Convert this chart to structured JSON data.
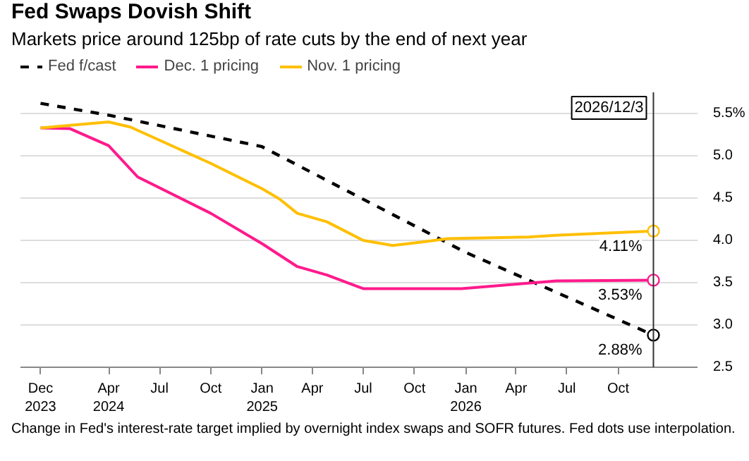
{
  "chart_data": {
    "type": "line",
    "title": "Fed Swaps Dovish Shift",
    "subtitle": "Markets price around 125bp of rate cuts by the end of next year",
    "series": [
      {
        "name": "Fed f/cast",
        "color": "#000000",
        "line_style": "dashed",
        "x": [
          "2023-12-01",
          "2024-04-01",
          "2024-12-31",
          "2025-12-31",
          "2026-12-03"
        ],
        "values": [
          5.62,
          5.48,
          5.11,
          3.86,
          2.88
        ],
        "value_labels": [
          null,
          null,
          null,
          null,
          "2.88%"
        ]
      },
      {
        "name": "Dec. 1 pricing",
        "color": "#ff1a8c",
        "x": [
          "2023-12-01",
          "2024-01-23",
          "2024-04-01",
          "2024-05-23",
          "2024-10-01",
          "2025-01-01",
          "2025-03-05",
          "2025-04-27",
          "2025-07-01",
          "2025-12-24",
          "2026-06-12",
          "2026-12-03"
        ],
        "values": [
          5.33,
          5.32,
          5.12,
          4.75,
          4.32,
          3.96,
          3.69,
          3.59,
          3.43,
          3.43,
          3.52,
          3.53
        ],
        "value_labels": [
          null,
          null,
          null,
          null,
          null,
          null,
          null,
          null,
          null,
          null,
          null,
          "3.53%"
        ]
      },
      {
        "name": "Nov. 1 pricing",
        "color": "#ffbf00",
        "x": [
          "2023-12-01",
          "2024-04-01",
          "2024-05-10",
          "2024-10-01",
          "2025-01-01",
          "2025-02-01",
          "2025-03-05",
          "2025-04-27",
          "2025-07-01",
          "2025-08-23",
          "2025-10-13",
          "2025-11-30",
          "2026-04-24",
          "2026-06-12",
          "2026-12-03"
        ],
        "values": [
          5.33,
          5.4,
          5.34,
          4.91,
          4.61,
          4.49,
          4.32,
          4.22,
          4.0,
          3.94,
          3.98,
          4.02,
          4.04,
          4.06,
          4.11
        ],
        "value_labels": [
          null,
          null,
          null,
          null,
          null,
          null,
          null,
          null,
          null,
          null,
          null,
          null,
          null,
          null,
          "4.11%"
        ]
      }
    ],
    "xlim": [
      "2023-10-26",
      "2027-02-20"
    ],
    "xticks": [
      {
        "value": "2023-12-01",
        "label": "Dec\n2023"
      },
      {
        "value": "2024-04-01",
        "label": "Apr\n2024"
      },
      {
        "value": "2024-07-01",
        "label": "Jul"
      },
      {
        "value": "2024-10-01",
        "label": "Oct"
      },
      {
        "value": "2025-01-01",
        "label": "Jan\n2025"
      },
      {
        "value": "2025-04-01",
        "label": "Apr"
      },
      {
        "value": "2025-07-01",
        "label": "Jul"
      },
      {
        "value": "2025-10-01",
        "label": "Oct"
      },
      {
        "value": "2026-01-01",
        "label": "Jan\n2026"
      },
      {
        "value": "2026-04-01",
        "label": "Apr"
      },
      {
        "value": "2026-07-01",
        "label": "Jul"
      },
      {
        "value": "2026-10-01",
        "label": "Oct"
      }
    ],
    "ylim": [
      2.5,
      5.75
    ],
    "yticks": [
      2.5,
      {
        "value": 3,
        "label": "3.0"
      },
      3.5,
      {
        "value": 4,
        "label": "4.0"
      },
      4.5,
      {
        "value": 5,
        "label": "5.0"
      },
      {
        "value": 5.5,
        "label": "5.5%"
      }
    ],
    "ref_lines": [
      {
        "axis": "x",
        "value": "2026-12-03",
        "label": "2026/12/3",
        "color": "#333333"
      }
    ],
    "grid": "y",
    "legend": "top",
    "annotations": [
      "Change in Fed's interest-rate target implied by overnight index swaps and SOFR futures. Fed dots use interpolation."
    ]
  }
}
